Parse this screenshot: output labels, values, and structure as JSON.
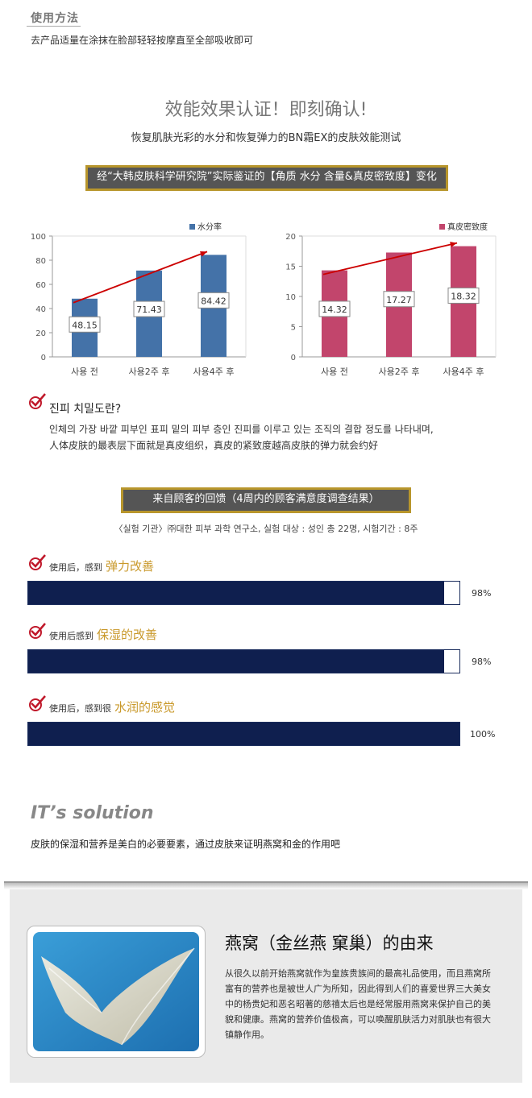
{
  "usage": {
    "title": "使用方法",
    "text": "去产品适量在涂抹在脸部轻轻按摩直至全部吸收即可"
  },
  "efficacy": {
    "title": "效能效果认证！即刻确认!",
    "subtitle": "恢复肌肤光彩的水分和恢复弹力的BN霜EX的皮肤效能测试",
    "banner": "经“大韩皮肤科学研究院”实际鉴证的【角质 水分 含量&真皮密致度】变化"
  },
  "chart_data": [
    {
      "type": "bar",
      "categories": [
        "사용 전",
        "사용2주 후",
        "사용4주 후"
      ],
      "series": [
        {
          "name": "水分率",
          "values": [
            48.15,
            71.43,
            84.42
          ]
        }
      ],
      "value_labels": [
        "48.15",
        "71.43",
        "84.42"
      ],
      "ylim": [
        0,
        100
      ],
      "yticks": [
        "0",
        "20",
        "40",
        "60",
        "80",
        "100"
      ],
      "color": "#4472a8",
      "grid": false,
      "legend": "top-right"
    },
    {
      "type": "bar",
      "categories": [
        "사용 전",
        "사용2주 후",
        "사용4주 후"
      ],
      "series": [
        {
          "name": "真皮密致度",
          "values": [
            14.32,
            17.27,
            18.32
          ]
        }
      ],
      "value_labels": [
        "14.32",
        "17.27",
        "18.32"
      ],
      "ylim": [
        0,
        20
      ],
      "yticks": [
        "0",
        "5",
        "10",
        "15",
        "20"
      ],
      "color": "#c2456c",
      "grid": false,
      "legend": "top-right"
    }
  ],
  "dermis": {
    "title": "진피 치밀도란?",
    "line1": "인체의 가장 바깥 피부인 표피 밑의 피부 층인 진피를 이루고 있는 조직의 결합 정도를 나타내며,",
    "line2": "人体皮肤的最表层下面就是真皮组织，真皮的紧致度越高皮肤的弹力就会约好"
  },
  "survey": {
    "banner": "来自顾客的回馈（4周内的顾客满意度调查结果）",
    "note": "〈실험 기관〉㈜대한 피부 과학 연구소, 실험 대상 : 성인 총 22명, 시험기간 : 8주",
    "items": [
      {
        "prefix": "使用后，感到",
        "highlight": "弹力改善",
        "percent_label": "98%",
        "value": 98
      },
      {
        "prefix": "使用后感到",
        "highlight": "保湿的改善",
        "percent_label": "98%",
        "value": 98
      },
      {
        "prefix": "使用后，感到很",
        "highlight": "水润的感觉",
        "percent_label": "100%",
        "value": 100
      }
    ]
  },
  "solution": {
    "title": "IT’s solution",
    "text": "皮肤的保湿和营养是美白的必要要素，通过皮肤来证明燕窝和金的作用吧"
  },
  "nest": {
    "title": "燕窝（金丝燕 窠巢）的由来",
    "text": "从很久以前开始燕窝就作为皇族贵族间的最高礼品使用，而且燕窝所富有的营养也是被世人广为所知，因此得到人们的喜爱世界三大美女中的杨贵妃和恶名昭著的慈禧太后也是经常服用燕窝来保护自己的美貌和健康。燕窝的营养价值极高，可以唤醒肌肤活力对肌肤也有很大镇静作用。"
  },
  "colors": {
    "accent_gold": "#b8962c",
    "highlight_gold": "#c9992b",
    "navy_bar": "#0f1f4f",
    "check_red": "#c0182a"
  }
}
